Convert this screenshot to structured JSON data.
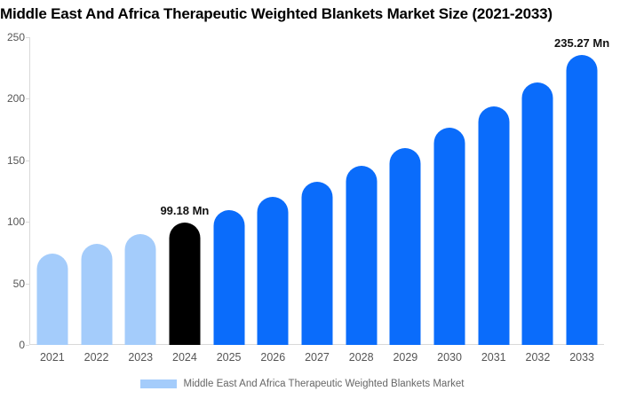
{
  "chart_data": {
    "type": "bar",
    "title": "Middle East And Africa Therapeutic Weighted Blankets Market Size (2021-2033)",
    "categories": [
      "2021",
      "2022",
      "2023",
      "2024",
      "2025",
      "2026",
      "2027",
      "2028",
      "2029",
      "2030",
      "2031",
      "2032",
      "2033"
    ],
    "values": [
      74.4,
      81.9,
      90.1,
      99.18,
      109.2,
      120.2,
      132.3,
      145.6,
      160.2,
      176.3,
      194.0,
      213.6,
      235.27
    ],
    "unit": "Mn",
    "bar_colors": [
      "#a4ccfb",
      "#a4ccfb",
      "#a4ccfb",
      "#000000",
      "#0a6cfb",
      "#0a6cfb",
      "#0a6cfb",
      "#0a6cfb",
      "#0a6cfb",
      "#0a6cfb",
      "#0a6cfb",
      "#0a6cfb",
      "#0a6cfb"
    ],
    "annotations": [
      {
        "category": "2024",
        "text": "99.18 Mn"
      },
      {
        "category": "2033",
        "text": "235.27 Mn"
      }
    ],
    "xlabel": "",
    "ylabel": "",
    "ylim": [
      0,
      250
    ],
    "yticks": [
      0,
      50,
      100,
      150,
      200,
      250
    ],
    "grid": false,
    "legend_position": "bottom",
    "legend": [
      {
        "label": "Middle East And Africa Therapeutic Weighted Blankets Market",
        "color": "#a4ccfb"
      }
    ],
    "colors": {
      "historical_bar": "#a4ccfb",
      "base_year_bar": "#000000",
      "forecast_bar": "#0a6cfb",
      "axis_line": "#d9d9d9",
      "tick_label": "#555555",
      "annotation_text": "#111111",
      "title_text": "#000000"
    }
  }
}
